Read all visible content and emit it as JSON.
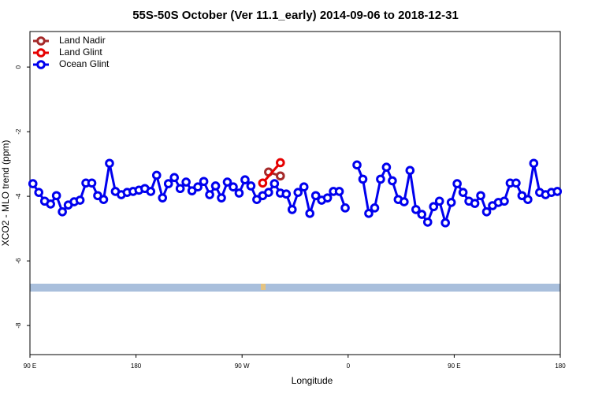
{
  "chart_data": {
    "type": "line",
    "title": "55S-50S October (Ver 11.1_early)   2014-09-06 to 2018-12-31",
    "xlabel": "Longitude",
    "ylabel": "XCO2 - MLO trend (ppm)",
    "xlim": [
      90,
      540
    ],
    "ylim": [
      -8.9,
      1.1
    ],
    "xticks": [
      {
        "value": 90,
        "label": "90 E"
      },
      {
        "value": 180,
        "label": "180"
      },
      {
        "value": 270,
        "label": "90 W"
      },
      {
        "value": 360,
        "label": "0"
      },
      {
        "value": 450,
        "label": "90 E"
      },
      {
        "value": 540,
        "label": "180"
      }
    ],
    "yticks": [
      0,
      -2,
      -4,
      -6,
      -8
    ],
    "legend": "top-left",
    "series": [
      {
        "name": "Land Nadir",
        "color": "#a52a2a",
        "x": [
          292.5,
          302.5
        ],
        "values": [
          -3.25,
          -3.37
        ]
      },
      {
        "name": "Land Glint",
        "color": "#e60000",
        "x": [
          287.5,
          302.5
        ],
        "values": [
          -3.59,
          -2.96
        ]
      },
      {
        "name": "Ocean Glint",
        "color": "#0000ee",
        "x": [
          92.5,
          97.5,
          102.5,
          107.5,
          112.5,
          117.5,
          122.5,
          127.5,
          132.5,
          137.5,
          142.5,
          147.5,
          152.5,
          157.5,
          162.5,
          167.5,
          172.5,
          177.5,
          182.5,
          187.5,
          192.5,
          197.5,
          202.5,
          207.5,
          212.5,
          217.5,
          222.5,
          227.5,
          232.5,
          237.5,
          242.5,
          247.5,
          252.5,
          257.5,
          262.5,
          267.5,
          272.5,
          277.5,
          282.5,
          287.5,
          292.5,
          297.5,
          302.5,
          307.5,
          312.5,
          317.5,
          322.5,
          327.5,
          332.5,
          337.5,
          342.5,
          347.5,
          352.5,
          357.5,
          362.5,
          367.5,
          372.5,
          377.5,
          382.5,
          387.5,
          392.5,
          397.5,
          402.5,
          407.5,
          412.5,
          417.5,
          422.5,
          427.5,
          432.5,
          437.5,
          442.5,
          447.5,
          452.5,
          457.5,
          462.5,
          467.5,
          472.5,
          477.5,
          482.5,
          487.5,
          492.5,
          497.5,
          502.5,
          507.5,
          512.5,
          517.5,
          522.5,
          527.5,
          532.5,
          537.5
        ],
        "values": [
          -3.61,
          -3.88,
          -4.15,
          -4.24,
          -3.98,
          -4.48,
          -4.27,
          -4.17,
          -4.12,
          -3.59,
          -3.59,
          -3.98,
          -4.1,
          -2.98,
          -3.85,
          -3.95,
          -3.88,
          -3.85,
          -3.81,
          -3.76,
          -3.85,
          -3.35,
          -4.05,
          -3.61,
          -3.42,
          -3.76,
          -3.56,
          -3.83,
          -3.71,
          -3.54,
          -3.95,
          -3.68,
          -4.05,
          -3.56,
          -3.71,
          -3.9,
          -3.49,
          -3.68,
          -4.1,
          -3.98,
          -3.88,
          -3.61,
          -3.9,
          -3.93,
          -4.41,
          -3.88,
          -3.71,
          -4.53,
          -3.98,
          -4.12,
          -4.05,
          -3.85,
          -3.85,
          -4.36,
          null,
          -3.03,
          -3.47,
          -4.53,
          -4.36,
          -3.47,
          -3.1,
          -3.52,
          -4.1,
          -4.17,
          -3.2,
          -4.41,
          -4.56,
          -4.8,
          -4.32,
          -4.15,
          -4.82,
          -4.19,
          -3.61,
          -3.88,
          -4.15,
          -4.22,
          -3.98,
          -4.48,
          -4.29,
          -4.19,
          -4.15,
          -3.59,
          -3.59,
          -3.98,
          -4.1,
          -2.98,
          -3.88,
          -3.95,
          -3.88,
          -3.85
        ]
      }
    ]
  }
}
